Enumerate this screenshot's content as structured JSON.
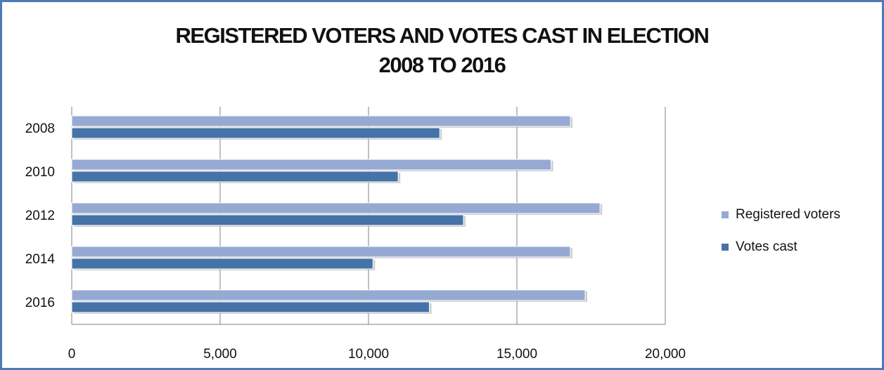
{
  "chart_data": {
    "type": "bar",
    "orientation": "horizontal",
    "title": [
      "REGISTERED VOTERS AND VOTES CAST IN ELECTION",
      "2008 TO 2016"
    ],
    "categories": [
      "2008",
      "2010",
      "2012",
      "2014",
      "2016"
    ],
    "series": [
      {
        "name": "Registered voters",
        "color": "#95a9d3",
        "values": [
          16800,
          16150,
          17800,
          16800,
          17300
        ]
      },
      {
        "name": "Votes cast",
        "color": "#4573a8",
        "values": [
          12400,
          11000,
          13200,
          10150,
          12050
        ]
      }
    ],
    "xlim": [
      0,
      20000
    ],
    "x_ticks": [
      "0",
      "5,000",
      "10,000",
      "15,000",
      "20,000"
    ],
    "grid": true,
    "legend_position": "right"
  }
}
